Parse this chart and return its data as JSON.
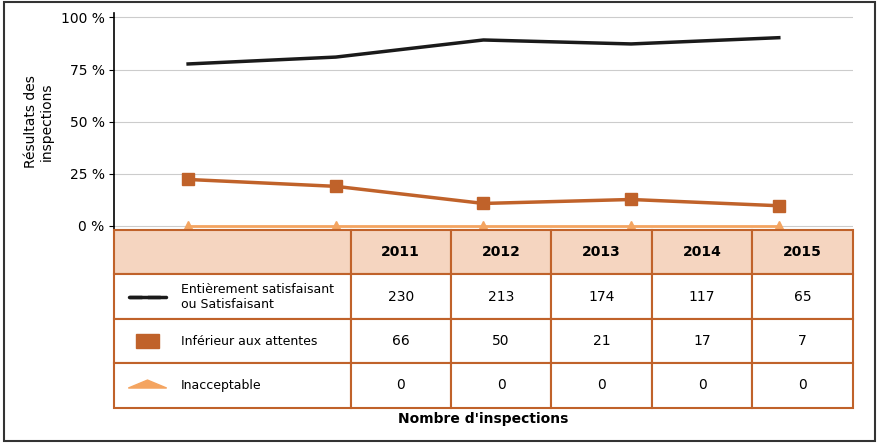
{
  "years": [
    2011,
    2012,
    2013,
    2014,
    2015
  ],
  "satisfaisant_pct": [
    77.7,
    81.0,
    89.2,
    87.3,
    90.3
  ],
  "inferieur_pct": [
    22.3,
    19.0,
    10.8,
    12.7,
    9.7
  ],
  "inacceptable_pct": [
    0.0,
    0.0,
    0.0,
    0.0,
    0.0
  ],
  "satisfaisant_counts": [
    230,
    213,
    174,
    117,
    65
  ],
  "inferieur_counts": [
    66,
    50,
    21,
    17,
    7
  ],
  "inacceptable_counts": [
    0,
    0,
    0,
    0,
    0
  ],
  "ylabel": "Résultats des\ninspections",
  "xlabel": "Nombre d'inspections",
  "yticks": [
    0,
    25,
    50,
    75,
    100
  ],
  "ytick_labels": [
    "0 %",
    "25 %",
    "50 %",
    "75 %",
    "100 %"
  ],
  "line_black_color": "#1a1a1a",
  "line_orange_color": "#C0622A",
  "triangle_color": "#F4A460",
  "table_header_bg": "#F5D5C0",
  "table_border_color": "#C0622A",
  "table_row_bg": "#FFFFFF",
  "legend_line1": "Entièrement satisfaisant\nou Satisfaisant",
  "legend_line2": "Inférieur aux attentes",
  "legend_line3": "Inacceptable",
  "plot_bg": "#FFFFFF",
  "grid_color": "#CCCCCC"
}
